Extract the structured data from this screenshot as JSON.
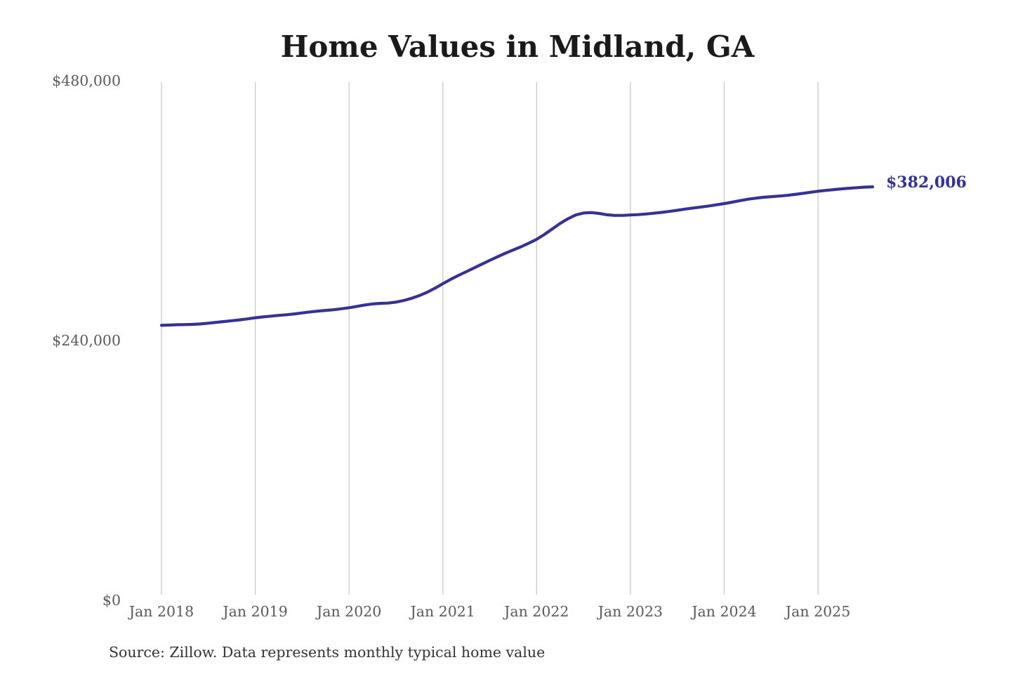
{
  "chart": {
    "title": "Home Values in Midland, GA",
    "source_note": "Source: Zillow. Data represents monthly typical home value",
    "end_label": "$382,006",
    "colors": {
      "line": "#343296",
      "grid": "#c9c9c9",
      "axis_text": "#5a5a5a",
      "title_text": "#1a1a1a",
      "source_text": "#333333",
      "end_label_text": "#343296"
    }
  },
  "chart_data": {
    "type": "line",
    "title": "Home Values in Midland, GA",
    "xlabel": "",
    "ylabel": "",
    "ylim": [
      0,
      480000
    ],
    "grid": "vertical-only",
    "legend": "none",
    "y_ticks": [
      0,
      240000,
      480000
    ],
    "y_tick_labels": [
      "$0",
      "$240,000",
      "$480,000"
    ],
    "x_tick_labels": [
      "Jan 2018",
      "Jan 2019",
      "Jan 2020",
      "Jan 2021",
      "Jan 2022",
      "Jan 2023",
      "Jan 2024",
      "Jan 2025"
    ],
    "annotation": {
      "text": "$382,006",
      "value": 382006,
      "position": "line-end"
    },
    "x": [
      "2018-01",
      "2018-02",
      "2018-03",
      "2018-04",
      "2018-05",
      "2018-06",
      "2018-07",
      "2018-08",
      "2018-09",
      "2018-10",
      "2018-11",
      "2018-12",
      "2019-01",
      "2019-02",
      "2019-03",
      "2019-04",
      "2019-05",
      "2019-06",
      "2019-07",
      "2019-08",
      "2019-09",
      "2019-10",
      "2019-11",
      "2019-12",
      "2020-01",
      "2020-02",
      "2020-03",
      "2020-04",
      "2020-05",
      "2020-06",
      "2020-07",
      "2020-08",
      "2020-09",
      "2020-10",
      "2020-11",
      "2020-12",
      "2021-01",
      "2021-02",
      "2021-03",
      "2021-04",
      "2021-05",
      "2021-06",
      "2021-07",
      "2021-08",
      "2021-09",
      "2021-10",
      "2021-11",
      "2021-12",
      "2022-01",
      "2022-02",
      "2022-03",
      "2022-04",
      "2022-05",
      "2022-06",
      "2022-07",
      "2022-08",
      "2022-09",
      "2022-10",
      "2022-11",
      "2022-12",
      "2023-01",
      "2023-02",
      "2023-03",
      "2023-04",
      "2023-05",
      "2023-06",
      "2023-07",
      "2023-08",
      "2023-09",
      "2023-10",
      "2023-11",
      "2023-12",
      "2024-01",
      "2024-02",
      "2024-03",
      "2024-04",
      "2024-05",
      "2024-06",
      "2024-07",
      "2024-08",
      "2024-09",
      "2024-10",
      "2024-11",
      "2024-12",
      "2025-01",
      "2025-02",
      "2025-03",
      "2025-04",
      "2025-05",
      "2025-06",
      "2025-07",
      "2025-08"
    ],
    "values": [
      254000,
      254300,
      254600,
      254700,
      254900,
      255300,
      256000,
      256800,
      257500,
      258300,
      259100,
      260000,
      261000,
      261800,
      262500,
      263200,
      263800,
      264600,
      265500,
      266400,
      267200,
      267800,
      268400,
      269300,
      270300,
      271500,
      272800,
      273800,
      274300,
      274600,
      275500,
      277000,
      279000,
      281500,
      284600,
      288300,
      292500,
      296500,
      300100,
      303600,
      307100,
      310600,
      314000,
      317400,
      320600,
      323600,
      326600,
      329900,
      333500,
      338000,
      343100,
      348100,
      352500,
      356000,
      357800,
      358200,
      357400,
      356200,
      355600,
      355600,
      356000,
      356300,
      356900,
      357600,
      358400,
      359300,
      360300,
      361400,
      362400,
      363300,
      364300,
      365400,
      366500,
      367800,
      369200,
      370500,
      371500,
      372300,
      372900,
      373400,
      374100,
      374900,
      375900,
      376900,
      377900,
      378700,
      379400,
      380100,
      380700,
      381200,
      381700,
      382006
    ]
  }
}
